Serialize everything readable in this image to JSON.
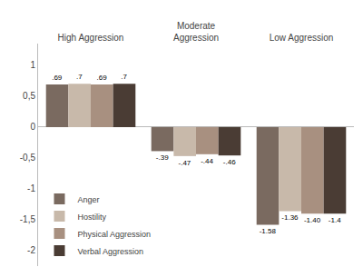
{
  "chart_data": {
    "type": "bar",
    "categories": [
      "High Aggression",
      "Moderate\nAggression",
      "Low Aggression"
    ],
    "series": [
      {
        "name": "Anger",
        "color": "#7a6a60",
        "values": [
          0.69,
          -0.39,
          -1.58
        ],
        "value_labels": [
          ".69",
          "-.39",
          "-1.58"
        ]
      },
      {
        "name": "Hostility",
        "color": "#c8b9aa",
        "values": [
          0.7,
          -0.47,
          -1.36
        ],
        "value_labels": [
          ".7",
          "-.47",
          "-1.36"
        ]
      },
      {
        "name": "Physical Aggression",
        "color": "#a89080",
        "values": [
          0.69,
          -0.44,
          -1.4
        ],
        "value_labels": [
          ".69",
          "-.44",
          "-1.40"
        ]
      },
      {
        "name": "Verbal Aggression",
        "color": "#4a3c34",
        "values": [
          0.7,
          -0.46,
          -1.4
        ],
        "value_labels": [
          ".7",
          "-.46",
          "-1.4"
        ]
      }
    ],
    "ylim": [
      -2.25,
      1.35
    ],
    "yticks": [
      1,
      {
        "value": 0.5,
        "label": "0,5"
      },
      0,
      {
        "value": -0.5,
        "label": "-0,5"
      },
      -1,
      {
        "value": -1.5,
        "label": "-1,5"
      },
      -2
    ],
    "grid": false,
    "legend": "lower left",
    "data_labels": true
  }
}
